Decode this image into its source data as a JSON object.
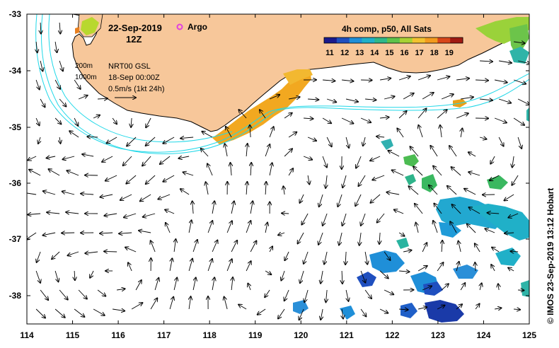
{
  "header": {
    "date": "22-Sep-2019",
    "time": "12Z",
    "argo_label": "Argo"
  },
  "legend": {
    "title": "4h comp, p50, All Sats",
    "ticks": [
      "11",
      "12",
      "13",
      "14",
      "15",
      "16",
      "17",
      "18",
      "19"
    ],
    "colors": [
      "#1a1a8c",
      "#1f4fbf",
      "#1f8fd8",
      "#20b0c8",
      "#2fb88a",
      "#5ec24a",
      "#a8d234",
      "#f2c230",
      "#f29a1e",
      "#d8461a",
      "#a01a12"
    ]
  },
  "info": {
    "contour_200": "200m",
    "contour_1000": "1000m",
    "source": "NRT00 GSL",
    "source_date": "18-Sep 00:00Z",
    "scale_label": "0.5m/s (1kt 24h)"
  },
  "axes": {
    "x_ticks": [
      "114",
      "115",
      "116",
      "117",
      "118",
      "119",
      "120",
      "121",
      "122",
      "123",
      "124",
      "125"
    ],
    "y_ticks": [
      "-33",
      "-34",
      "-35",
      "-36",
      "-37",
      "-38"
    ]
  },
  "credit": "© IMOS 23-Sep-2019 13:12 Hobart",
  "colors": {
    "land": "#f7c79a",
    "contour": "#20d8e8",
    "argo": "#e040e0",
    "coast": "#000000"
  }
}
